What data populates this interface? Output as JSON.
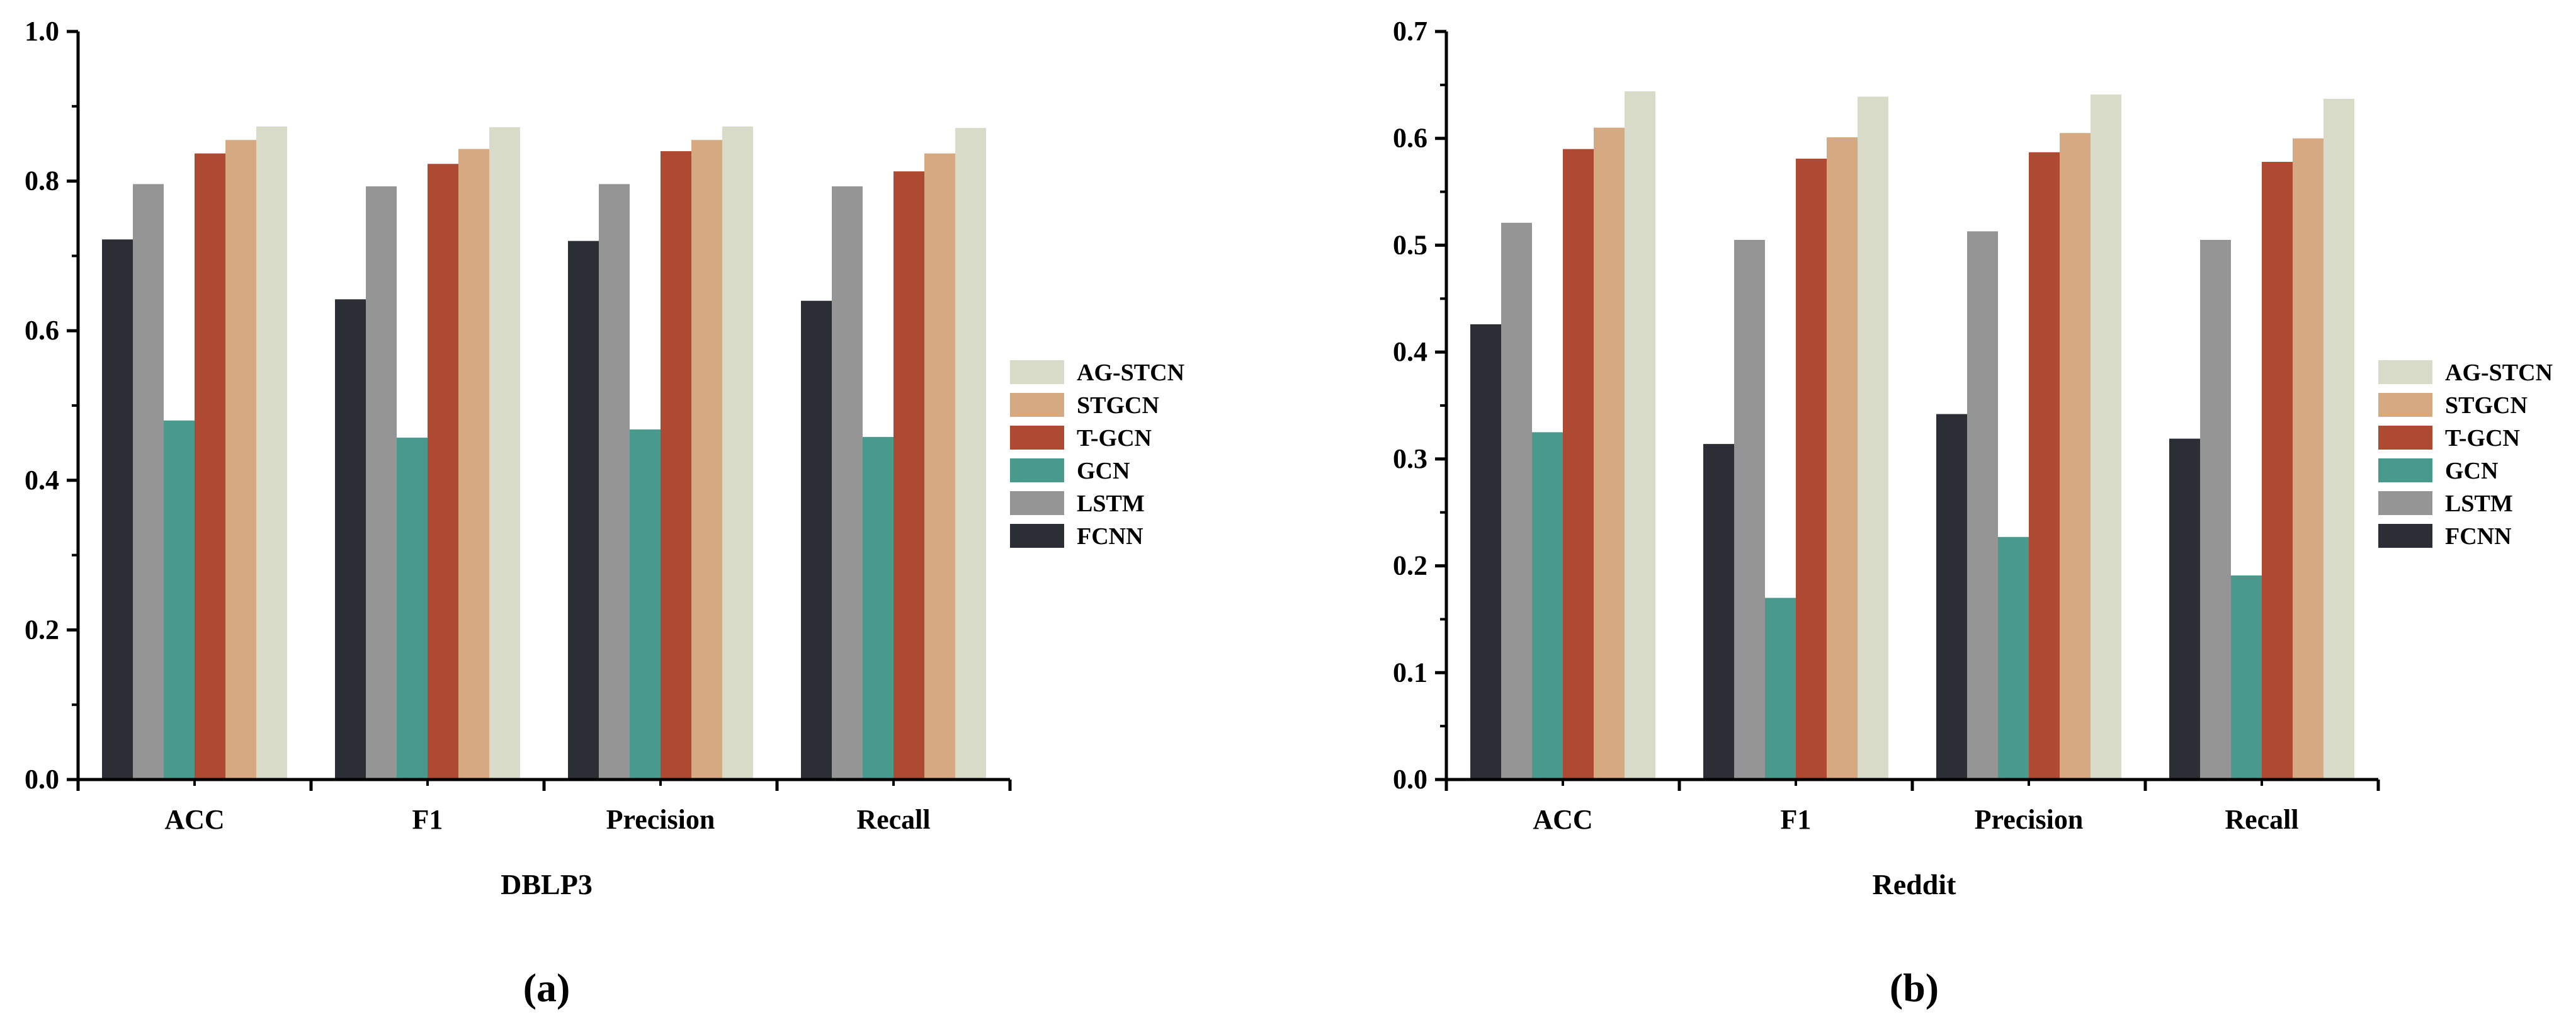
{
  "series_colors": {
    "FCNN": "#2b2f35",
    "LSTM": "#959595",
    "GCN": "#4a998d",
    "T-GCN": "#ae4a31",
    "STGCN": "#d5a982",
    "AG-STCN": "#d8dbc8"
  },
  "chart_data": [
    {
      "type": "bar",
      "dataset_label": "DBLP3",
      "panel_label": "(a)",
      "categories": [
        "ACC",
        "F1",
        "Precision",
        "Recall"
      ],
      "ylim": [
        0,
        1.0
      ],
      "yticks": [
        "0.0",
        "0.2",
        "0.4",
        "0.6",
        "0.8",
        "1.0"
      ],
      "legend_order": [
        "AG-STCN",
        "STGCN",
        "T-GCN",
        "GCN",
        "LSTM",
        "FCNN"
      ],
      "series": [
        {
          "name": "FCNN",
          "values": [
            0.722,
            0.642,
            0.72,
            0.64
          ]
        },
        {
          "name": "LSTM",
          "values": [
            0.796,
            0.793,
            0.796,
            0.793
          ]
        },
        {
          "name": "GCN",
          "values": [
            0.48,
            0.457,
            0.468,
            0.458
          ]
        },
        {
          "name": "T-GCN",
          "values": [
            0.837,
            0.823,
            0.84,
            0.813
          ]
        },
        {
          "name": "STGCN",
          "values": [
            0.855,
            0.843,
            0.855,
            0.837
          ]
        },
        {
          "name": "AG-STCN",
          "values": [
            0.873,
            0.872,
            0.873,
            0.871
          ]
        }
      ]
    },
    {
      "type": "bar",
      "dataset_label": "Reddit",
      "panel_label": "(b)",
      "categories": [
        "ACC",
        "F1",
        "Precision",
        "Recall"
      ],
      "ylim": [
        0,
        0.7
      ],
      "yticks": [
        "0.0",
        "0.1",
        "0.2",
        "0.3",
        "0.4",
        "0.5",
        "0.6",
        "0.7"
      ],
      "legend_order": [
        "AG-STCN",
        "STGCN",
        "T-GCN",
        "GCN",
        "LSTM",
        "FCNN"
      ],
      "series": [
        {
          "name": "FCNN",
          "values": [
            0.426,
            0.314,
            0.342,
            0.319
          ]
        },
        {
          "name": "LSTM",
          "values": [
            0.521,
            0.505,
            0.513,
            0.505
          ]
        },
        {
          "name": "GCN",
          "values": [
            0.325,
            0.17,
            0.227,
            0.191
          ]
        },
        {
          "name": "T-GCN",
          "values": [
            0.59,
            0.581,
            0.587,
            0.578
          ]
        },
        {
          "name": "STGCN",
          "values": [
            0.61,
            0.601,
            0.605,
            0.6
          ]
        },
        {
          "name": "AG-STCN",
          "values": [
            0.644,
            0.639,
            0.641,
            0.637
          ]
        }
      ]
    }
  ]
}
